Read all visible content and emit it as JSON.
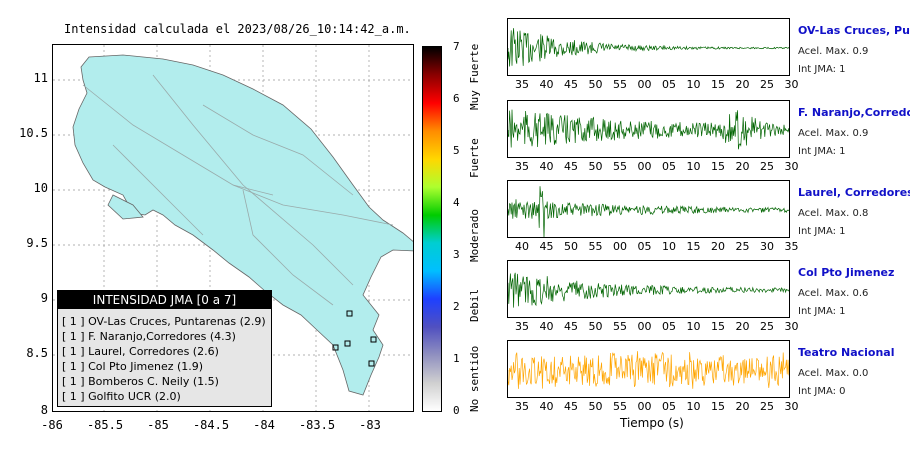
{
  "map": {
    "title": "Intensidad calculada el 2023/08/26_10:14:42_a.m.",
    "y_ticks": [
      "11",
      "10.5",
      "10",
      "9.5",
      "9",
      "8.5",
      "8"
    ],
    "x_ticks": [
      "-86",
      "-85.5",
      "-85",
      "-84.5",
      "-84",
      "-83.5",
      "-83"
    ],
    "legend": {
      "header": "INTENSIDAD JMA [0 a 7]",
      "rows": [
        {
          "jma": "[ 1 ]",
          "label": "OV-Las Cruces, Puntarenas (2.9)"
        },
        {
          "jma": "[ 1 ]",
          "label": "F. Naranjo,Corredores (4.3)"
        },
        {
          "jma": "[ 1 ]",
          "label": "Laurel, Corredores (2.6)"
        },
        {
          "jma": "[ 1 ]",
          "label": "Col Pto Jimenez (1.9)"
        },
        {
          "jma": "[ 1 ]",
          "label": "Bomberos C. Neily (1.5)"
        },
        {
          "jma": "[ 1 ]",
          "label": "Golfito UCR (2.0)"
        }
      ]
    },
    "land_color": "#b2eded",
    "station_color": "#000000"
  },
  "colorbar": {
    "ticks": [
      "7",
      "6",
      "5",
      "4",
      "3",
      "2",
      "1",
      "0"
    ],
    "labels": [
      "Muy Fuerte",
      "Fuerte",
      "Moderado",
      "Debil",
      "No sentido"
    ],
    "colors": [
      "#000000",
      "#8b0000",
      "#ff0000",
      "#ff8c00",
      "#ffd700",
      "#adff2f",
      "#00cc00",
      "#00ced1",
      "#00bfff",
      "#1e40ff",
      "#5050c0",
      "#9090c0",
      "#d0d0d0",
      "#ffffff"
    ]
  },
  "traces": [
    {
      "name": "OV-Las Cruces, Puntar",
      "acel": "Acel. Max. 0.9",
      "jma": "Int JMA: 1",
      "color": "#006400",
      "ticks": [
        "35",
        "40",
        "45",
        "50",
        "55",
        "00",
        "05",
        "10",
        "15",
        "20",
        "25",
        "30"
      ],
      "shape": "decay"
    },
    {
      "name": "F. Naranjo,Corredores",
      "acel": "Acel. Max. 0.9",
      "jma": "Int JMA: 1",
      "color": "#006400",
      "ticks": [
        "35",
        "40",
        "45",
        "50",
        "55",
        "00",
        "05",
        "10",
        "15",
        "20",
        "25",
        "30"
      ],
      "shape": "double"
    },
    {
      "name": "Laurel, Corredores",
      "acel": "Acel. Max. 0.8",
      "jma": "Int JMA: 1",
      "color": "#006400",
      "ticks": [
        "40",
        "45",
        "50",
        "55",
        "00",
        "05",
        "10",
        "15",
        "20",
        "25",
        "30",
        "35"
      ],
      "shape": "spike"
    },
    {
      "name": "Col Pto Jimenez",
      "acel": "Acel. Max. 0.6",
      "jma": "Int JMA: 1",
      "color": "#006400",
      "ticks": [
        "35",
        "40",
        "45",
        "50",
        "55",
        "00",
        "05",
        "10",
        "15",
        "20",
        "25",
        "30"
      ],
      "shape": "decay2"
    },
    {
      "name": "Teatro Nacional",
      "acel": "Acel. Max. 0.0",
      "jma": "Int JMA: 0",
      "color": "#ffa500",
      "ticks": [
        "35",
        "40",
        "45",
        "50",
        "55",
        "00",
        "05",
        "10",
        "15",
        "20",
        "25",
        "30"
      ],
      "shape": "noise"
    }
  ],
  "x_label": "Tiempo (s)"
}
